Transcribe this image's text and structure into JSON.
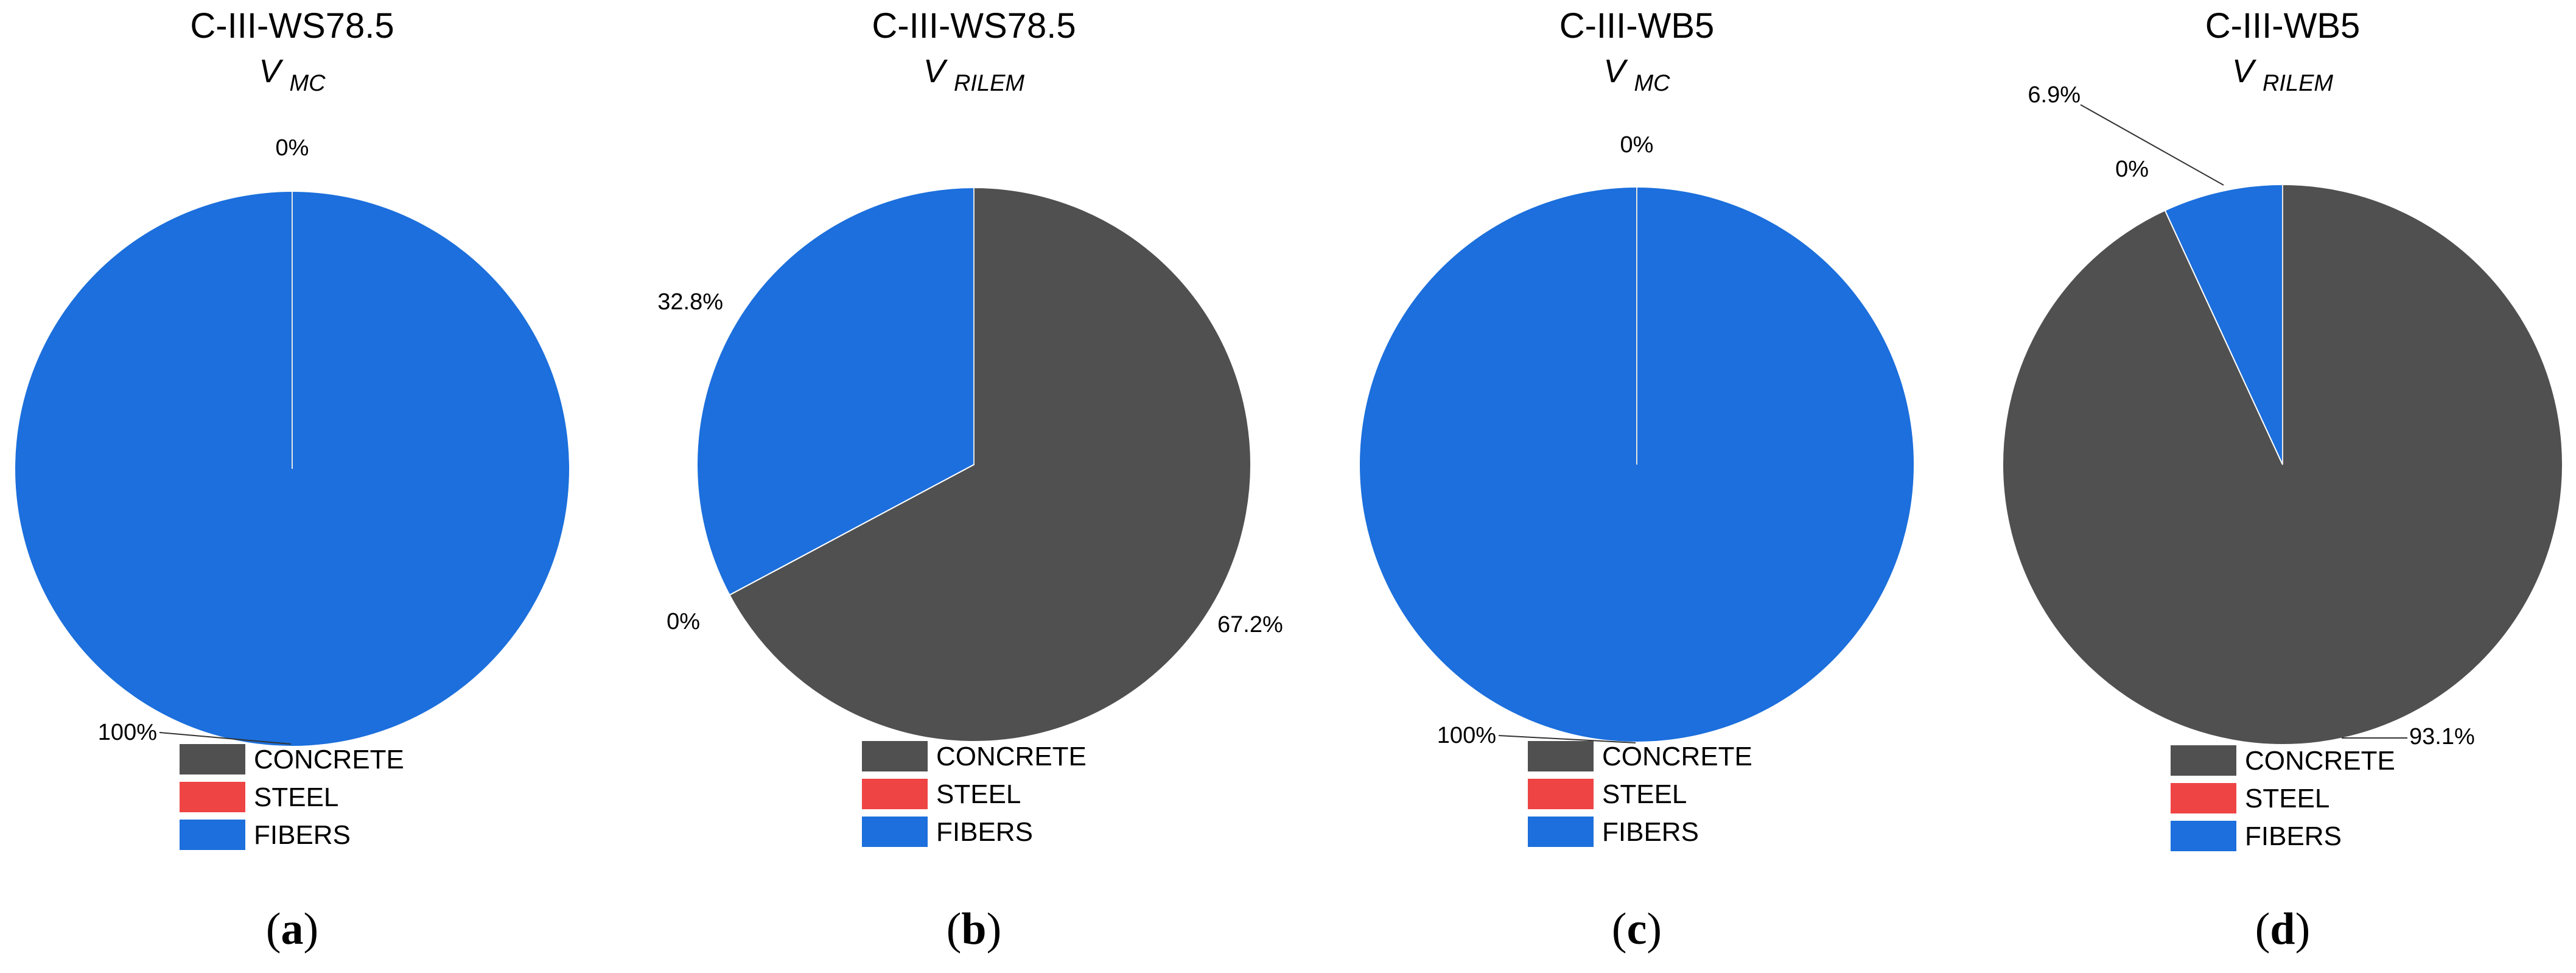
{
  "legend": [
    {
      "label": "CONCRETE",
      "color": "#505050"
    },
    {
      "label": "STEEL",
      "color": "#ef4444"
    },
    {
      "label": "FIBERS",
      "color": "#1c6fdc"
    }
  ],
  "chart_data": [
    {
      "type": "pie",
      "title": "C-III-WS78.5",
      "subtitle_main": "V",
      "subtitle_sub": "MC",
      "caption": "a",
      "categories": [
        "CONCRETE",
        "STEEL",
        "FIBERS"
      ],
      "values": [
        0,
        0,
        100
      ],
      "labels": [
        "0%",
        "",
        "100%"
      ]
    },
    {
      "type": "pie",
      "title": "C-III-WS78.5",
      "subtitle_main": "V",
      "subtitle_sub": "RILEM",
      "caption": "b",
      "categories": [
        "CONCRETE",
        "STEEL",
        "FIBERS"
      ],
      "values": [
        67.2,
        0,
        32.8
      ],
      "labels": [
        "67.2%",
        "0%",
        "32.8%"
      ]
    },
    {
      "type": "pie",
      "title": "C-III-WB5",
      "subtitle_main": "V",
      "subtitle_sub": "MC",
      "caption": "c",
      "categories": [
        "CONCRETE",
        "STEEL",
        "FIBERS"
      ],
      "values": [
        0,
        0,
        100
      ],
      "labels": [
        "0%",
        "",
        "100%"
      ]
    },
    {
      "type": "pie",
      "title": "C-III-WB5",
      "subtitle_main": "V",
      "subtitle_sub": "RILEM",
      "caption": "d",
      "categories": [
        "CONCRETE",
        "STEEL",
        "FIBERS"
      ],
      "values": [
        93.1,
        0,
        6.9
      ],
      "labels": [
        "93.1%",
        "0%",
        "6.9%"
      ]
    }
  ]
}
